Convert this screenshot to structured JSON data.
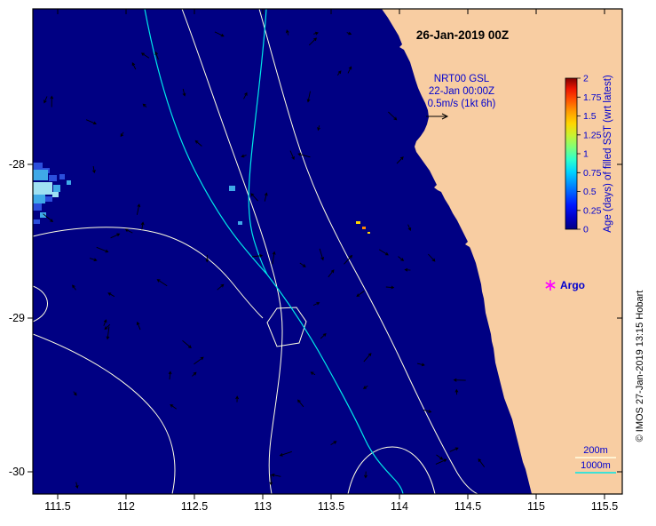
{
  "title": "26-Jan-2019 00Z",
  "product": {
    "name": "NRT00 GSL",
    "valid_time": "22-Jan 00:00Z",
    "vector_scale": "0.5m/s (1kt 6h)"
  },
  "argo": {
    "label": "Argo"
  },
  "depth_legend": {
    "shelf": "200m",
    "slope": "1000m"
  },
  "credit": "© IMOS 27-Jan-2019 13:15 Hobart",
  "colorbar": {
    "label": "Age (days) of filled SST (wrt latest)",
    "ticks": [
      "2",
      "1.75",
      "1.5",
      "1.25",
      "1",
      "0.75",
      "0.5",
      "0.25",
      "0"
    ]
  },
  "axes": {
    "x_ticks": [
      "111.5",
      "112",
      "112.5",
      "113",
      "113.5",
      "114",
      "114.5",
      "115",
      "115.5"
    ],
    "y_ticks": [
      "-28",
      "-29",
      "-30"
    ]
  },
  "colors": {
    "ocean": "#000083",
    "land": "#F8CDA2",
    "contour_200m": "#FFFFE2",
    "contour_1000m": "#00E8E8",
    "annotation_blue": "#0000D0",
    "argo_marker": "#FF00FF",
    "age_patch_blue": "#2B4EDC",
    "age_patch_medium": "#3FA9E8",
    "age_patch_light": "#9FE0F2",
    "speck_yellow": "#FFD400",
    "speck_orange": "#FF8A00"
  }
}
